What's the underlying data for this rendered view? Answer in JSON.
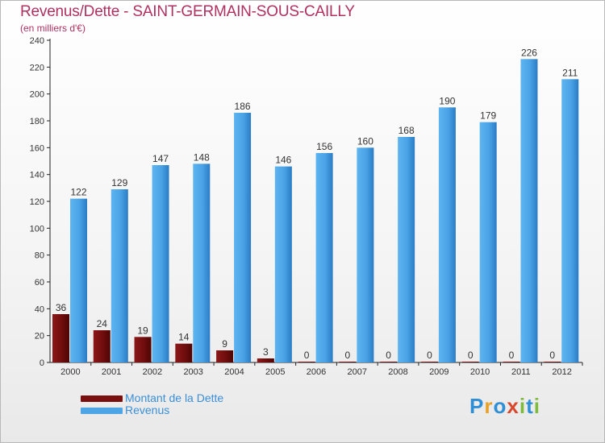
{
  "chart_data": {
    "type": "bar",
    "title": "Revenus/Dette - SAINT-GERMAIN-SOUS-CAILLY",
    "subtitle": "(en milliers d'€)",
    "categories": [
      "2000",
      "2001",
      "2002",
      "2003",
      "2004",
      "2005",
      "2006",
      "2007",
      "2008",
      "2009",
      "2010",
      "2011",
      "2012"
    ],
    "series": [
      {
        "name": "Montant de la Dette",
        "color": "#7a0f0f",
        "values": [
          36,
          24,
          19,
          14,
          9,
          3,
          0,
          0,
          0,
          0,
          0,
          0,
          0
        ]
      },
      {
        "name": "Revenus",
        "color": "#4ea5e6",
        "values": [
          122,
          129,
          147,
          148,
          186,
          146,
          156,
          160,
          168,
          190,
          179,
          226,
          211
        ]
      }
    ],
    "ylim": [
      0,
      240
    ],
    "yticks": [
      0,
      20,
      40,
      60,
      80,
      100,
      120,
      140,
      160,
      180,
      200,
      220,
      240
    ],
    "grid": false,
    "legend_position": "bottom-left"
  },
  "logo": {
    "letters": [
      "P",
      "r",
      "o",
      "x",
      "i",
      "t",
      "i"
    ]
  }
}
